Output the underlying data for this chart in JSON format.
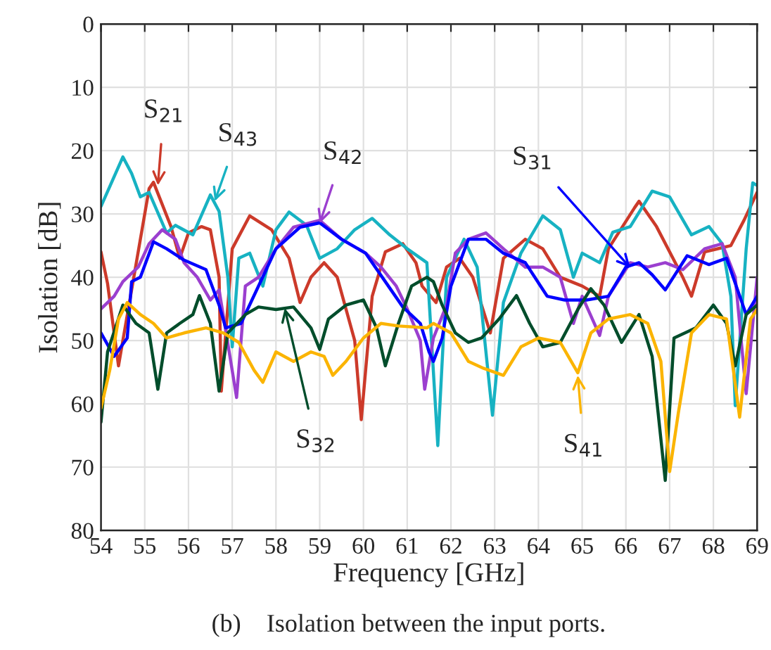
{
  "chart_data": {
    "type": "line",
    "xlabel": "Frequency [GHz]",
    "ylabel": "Isolation [dB]",
    "xlim": [
      54,
      69
    ],
    "ylim": [
      80,
      0
    ],
    "xticks": [
      54,
      55,
      56,
      57,
      58,
      59,
      60,
      61,
      62,
      63,
      64,
      65,
      66,
      67,
      68,
      69
    ],
    "yticks": [
      0,
      10,
      20,
      30,
      40,
      50,
      60,
      70,
      80
    ],
    "grid": true,
    "marker": "none",
    "line_style": "solid",
    "series": [
      {
        "color": "#cc3a2a",
        "x": [
          54,
          54.15,
          54.4,
          55.1,
          55.2,
          55.6,
          55.8,
          56.0,
          56.3,
          56.5,
          56.7,
          56.75,
          57.0,
          57.4,
          57.9,
          58.3,
          58.55,
          58.8,
          59.1,
          59.4,
          59.8,
          59.95,
          60.2,
          60.5,
          60.9,
          61.2,
          61.34,
          61.66,
          61.9,
          62.2,
          62.5,
          62.9,
          63.2,
          63.7,
          64.1,
          64.5,
          65.0,
          65.4,
          65.6,
          66.2,
          66.3,
          66.7,
          67.3,
          67.5,
          67.8,
          68.4,
          68.7,
          69
        ],
        "values": [
          36,
          41,
          54,
          26,
          25,
          32,
          37,
          33,
          32,
          32.5,
          40,
          58,
          35.5,
          30.3,
          32.5,
          37,
          44,
          40,
          37.7,
          40,
          50,
          62.5,
          43,
          36,
          34.7,
          37.7,
          41.4,
          44,
          38.4,
          37,
          40,
          48.8,
          37,
          34,
          35.5,
          40,
          41.4,
          43,
          35.5,
          29,
          28,
          32,
          40,
          43,
          36,
          35,
          31,
          26.6
        ]
      },
      {
        "color": "#17b2c2",
        "x": [
          54,
          54.5,
          54.7,
          54.9,
          55.1,
          55.5,
          55.7,
          56.1,
          56.5,
          56.7,
          56.9,
          57.0,
          57.15,
          57.4,
          57.7,
          58.0,
          58.3,
          58.7,
          59.0,
          59.4,
          59.8,
          60.2,
          60.6,
          61.0,
          61.45,
          61.7,
          61.9,
          62.3,
          62.6,
          62.95,
          63.2,
          63.6,
          64.1,
          64.5,
          64.8,
          65.0,
          65.4,
          65.7,
          66.1,
          66.6,
          67.0,
          67.5,
          67.9,
          68.2,
          68.4,
          68.5,
          68.75,
          68.9,
          69
        ],
        "values": [
          28.8,
          21,
          23.6,
          27.3,
          26.6,
          33,
          31.8,
          33.3,
          27,
          29.6,
          40,
          51,
          37,
          36.2,
          41.4,
          32.5,
          29.7,
          31.8,
          37,
          35.5,
          32.5,
          30.7,
          33.3,
          35.5,
          37.7,
          66.6,
          40,
          34,
          38.4,
          61.8,
          44,
          36.2,
          30.3,
          32.5,
          40,
          36.2,
          37.7,
          32.9,
          32,
          26.4,
          27.3,
          33.3,
          32,
          34.7,
          43,
          60.3,
          35.5,
          25.1,
          25.5
        ]
      },
      {
        "color": "#9b3fcf",
        "x": [
          54,
          54.3,
          54.5,
          54.85,
          55.1,
          55.4,
          55.7,
          55.9,
          56.2,
          56.5,
          56.7,
          57.1,
          57.3,
          57.6,
          58.0,
          58.4,
          59.0,
          59.5,
          60.05,
          60.4,
          60.75,
          61.0,
          61.3,
          61.4,
          61.6,
          61.9,
          62.1,
          62.4,
          62.8,
          63.2,
          63.7,
          64.1,
          64.5,
          64.8,
          65.0,
          65.4,
          65.6,
          66.1,
          66.5,
          66.9,
          67.3,
          67.8,
          68.2,
          68.5,
          68.75,
          69
        ],
        "values": [
          45,
          43,
          40.7,
          38.4,
          34.7,
          32.5,
          34,
          37.7,
          40,
          43.6,
          42,
          59,
          41.4,
          40,
          35.5,
          32.1,
          31,
          34,
          36.2,
          38.4,
          41.4,
          45,
          50,
          57.7,
          49.6,
          44.4,
          36.2,
          34,
          33,
          35.5,
          38.4,
          38.4,
          40,
          47.3,
          43,
          49.2,
          43,
          37.7,
          38.4,
          37.7,
          38.8,
          35.5,
          34.7,
          40,
          58.4,
          40
        ]
      },
      {
        "color": "#0000ff",
        "x": [
          54,
          54.3,
          54.6,
          54.7,
          54.9,
          55.2,
          55.5,
          55.9,
          56.4,
          56.7,
          56.85,
          57.2,
          57.6,
          58.0,
          58.55,
          59.0,
          59.5,
          60.05,
          60.5,
          60.9,
          61.3,
          61.5,
          61.6,
          61.8,
          62.0,
          62.4,
          62.8,
          63.2,
          63.7,
          64.2,
          64.6,
          65.1,
          65.6,
          66.0,
          66.3,
          66.6,
          66.9,
          67.4,
          67.9,
          68.3,
          68.75,
          69
        ],
        "values": [
          48.8,
          52.5,
          49.6,
          40.7,
          40,
          34.4,
          35.5,
          37.3,
          38.8,
          44.4,
          48,
          47.3,
          41.4,
          35.5,
          32.1,
          31.4,
          34,
          36.2,
          40.7,
          44.7,
          47.3,
          51.8,
          53.3,
          49.6,
          41.4,
          34,
          34,
          36.2,
          37.7,
          43,
          43.6,
          43.6,
          43,
          38.4,
          37.7,
          39.6,
          42,
          36.6,
          38,
          37,
          45.9,
          43
        ]
      },
      {
        "color": "#004d2b",
        "x": [
          54,
          54.15,
          54.5,
          54.8,
          55.1,
          55.3,
          55.5,
          55.8,
          56.1,
          56.25,
          56.5,
          56.7,
          56.9,
          57.3,
          57.6,
          58.0,
          58.4,
          58.8,
          59.0,
          59.2,
          59.6,
          60.0,
          60.3,
          60.5,
          60.8,
          61.1,
          61.45,
          61.6,
          61.8,
          62.1,
          62.4,
          62.7,
          63.1,
          63.5,
          63.8,
          64.1,
          64.5,
          64.9,
          65.2,
          65.5,
          65.9,
          66.3,
          66.6,
          66.9,
          67.1,
          67.6,
          68.0,
          68.3,
          68.5,
          68.75,
          69
        ],
        "values": [
          62.9,
          51.8,
          44.4,
          47.3,
          48.8,
          57.7,
          48.8,
          47.3,
          45.9,
          42.9,
          47.3,
          58,
          48.8,
          45.9,
          44.7,
          45.1,
          44.7,
          48,
          51.4,
          46.6,
          44.4,
          43.6,
          48,
          54,
          47.3,
          41.4,
          40,
          40.7,
          44.4,
          48.8,
          50.3,
          49.6,
          46.6,
          42.9,
          47.3,
          51,
          50.3,
          45.1,
          41.8,
          44.4,
          50.3,
          45.9,
          52.5,
          72.1,
          49.6,
          48,
          44.4,
          47.3,
          54,
          45.9,
          44.4
        ]
      },
      {
        "color": "#fbb400",
        "x": [
          54,
          54.2,
          54.4,
          54.6,
          54.9,
          55.2,
          55.5,
          55.9,
          56.4,
          56.8,
          57.15,
          57.5,
          57.7,
          58.0,
          58.4,
          58.8,
          59.1,
          59.3,
          59.6,
          60.0,
          60.4,
          60.8,
          61.45,
          61.6,
          62.0,
          62.4,
          62.75,
          63.2,
          63.6,
          64.0,
          64.5,
          64.9,
          65.2,
          65.6,
          66.1,
          66.5,
          66.8,
          67.0,
          67.2,
          67.5,
          67.9,
          68.3,
          68.6,
          68.85,
          69
        ],
        "values": [
          60.7,
          54.7,
          46.6,
          44,
          45.9,
          47.3,
          49.6,
          48.8,
          48,
          48.8,
          50.3,
          54.7,
          56.6,
          51.8,
          53.3,
          51.8,
          52.5,
          55.5,
          53.3,
          49.6,
          47.3,
          47.7,
          48,
          47.3,
          48.8,
          53.3,
          54.4,
          55.5,
          51,
          49.6,
          50.3,
          55.1,
          48.8,
          46.6,
          45.9,
          47.3,
          53.3,
          70.7,
          61.4,
          48.8,
          45.9,
          46.6,
          62.1,
          46.6,
          45.1
        ]
      }
    ],
    "annotations": [
      {
        "text": "S$_{21}$",
        "x": 55.3,
        "y": 25.5
      },
      {
        "text": "S$_{43}$",
        "x": 56.6,
        "y": 28
      },
      {
        "text": "S$_{42}$",
        "x": 59.0,
        "y": 31.5
      },
      {
        "text": "S$_{31}$",
        "x": 66.1,
        "y": 38.5
      },
      {
        "text": "S$_{32}$",
        "x": 58.2,
        "y": 44.9
      },
      {
        "text": "S$_{41}$",
        "x": 64.9,
        "y": 55.5
      },
      "(b)    Isolation between the input ports."
    ]
  }
}
